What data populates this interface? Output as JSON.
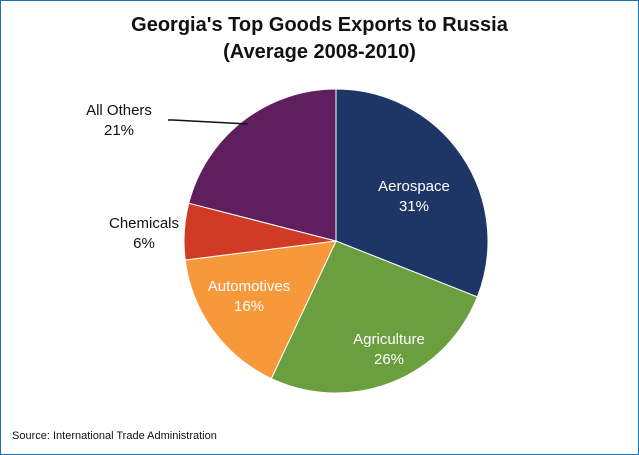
{
  "chart_data": {
    "type": "pie",
    "title_line1": "Georgia's Top Goods Exports to Russia",
    "title_line2": "(Average 2008-2010)",
    "slices": [
      {
        "label": "Aerospace",
        "value": 31,
        "value_label": "31%",
        "color": "#1d3665",
        "label_color": "#ffffff"
      },
      {
        "label": "Agriculture",
        "value": 26,
        "value_label": "26%",
        "color": "#6b9e3f",
        "label_color": "#ffffff"
      },
      {
        "label": "Automotives",
        "value": 16,
        "value_label": "16%",
        "color": "#f7993a",
        "label_color": "#ffffff"
      },
      {
        "label": "Chemicals",
        "value": 6,
        "value_label": "6%",
        "color": "#d13b25",
        "label_color": "#111111"
      },
      {
        "label": "All Others",
        "value": 21,
        "value_label": "21%",
        "color": "#5f1f5e",
        "label_color": "#111111"
      }
    ],
    "source": "Source: International Trade Administration"
  }
}
